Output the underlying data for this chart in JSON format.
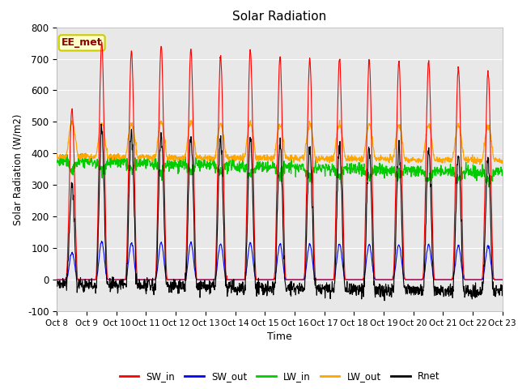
{
  "title": "Solar Radiation",
  "xlabel": "Time",
  "ylabel": "Solar Radiation (W/m2)",
  "ylim": [
    -100,
    800
  ],
  "yticks": [
    -100,
    0,
    100,
    200,
    300,
    400,
    500,
    600,
    700,
    800
  ],
  "xtick_labels": [
    "Oct 8",
    "Oct 9",
    "Oct 10",
    "Oct 11",
    "Oct 12",
    "Oct 13",
    "Oct 14",
    "Oct 15",
    "Oct 16",
    "Oct 17",
    "Oct 18",
    "Oct 19",
    "Oct 20",
    "Oct 21",
    "Oct 22",
    "Oct 23"
  ],
  "annotation_text": "EE_met",
  "series_colors": {
    "SW_in": "#ff0000",
    "SW_out": "#0000ff",
    "LW_in": "#00cc00",
    "LW_out": "#ffa500",
    "Rnet": "#000000"
  },
  "n_days": 15,
  "pts_per_day": 96,
  "sw_peaks": [
    540,
    750,
    725,
    740,
    730,
    710,
    730,
    705,
    700,
    700,
    695,
    690,
    690,
    670,
    660
  ],
  "plot_bg_color": "#e8e8e8",
  "grid_color": "#ffffff",
  "fig_bg_color": "#ffffff"
}
